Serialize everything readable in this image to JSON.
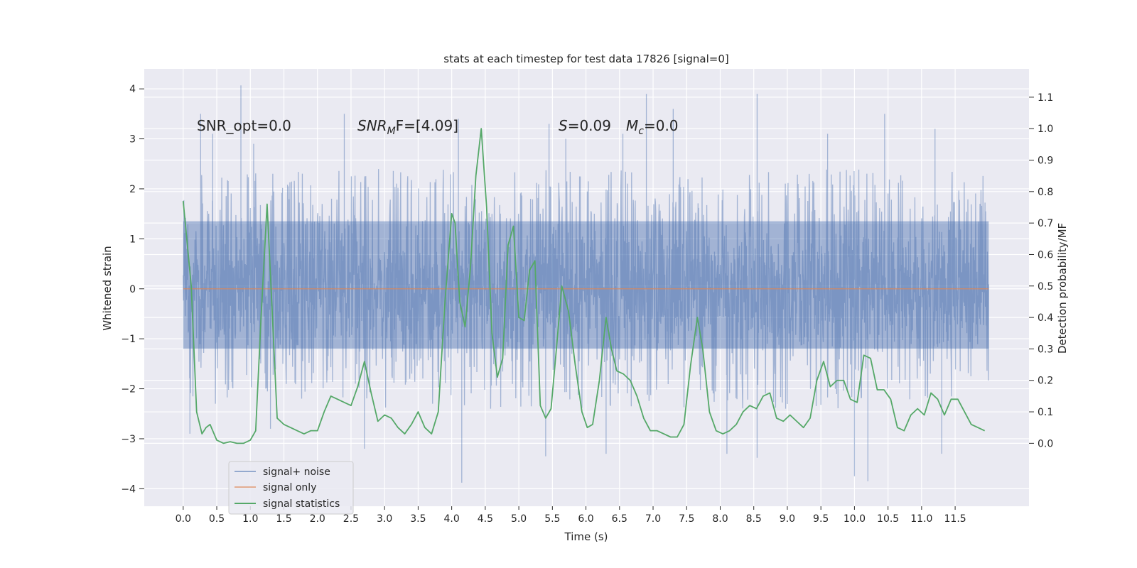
{
  "chart_data": {
    "type": "line",
    "title": "stats at each timestep for test data 17826 [signal=0]",
    "xlabel": "Time (s)",
    "ylabel": "Whitened strain",
    "ylabel_right": "Detection probability/MF",
    "xlim": [
      -0.58,
      12.6
    ],
    "ylim": [
      -4.35,
      4.4
    ],
    "ylim_right": [
      -0.2,
      1.19
    ],
    "x_ticks": [
      0.0,
      0.5,
      1.0,
      1.5,
      2.0,
      2.5,
      3.0,
      3.5,
      4.0,
      4.5,
      5.0,
      5.5,
      6.0,
      6.5,
      7.0,
      7.5,
      8.0,
      8.5,
      9.0,
      9.5,
      10.0,
      10.5,
      11.0,
      11.5
    ],
    "x_tick_labels": [
      "0.0",
      "0.5",
      "1.0",
      "1.5",
      "2.0",
      "2.5",
      "3.0",
      "3.5",
      "4.0",
      "4.5",
      "5.0",
      "5.5",
      "6.0",
      "6.5",
      "7.0",
      "7.5",
      "8.0",
      "8.5",
      "9.0",
      "9.5",
      "10.0",
      "10.5",
      "11.0",
      "11.5"
    ],
    "y_ticks": [
      -4,
      -3,
      -2,
      -1,
      0,
      1,
      2,
      3,
      4
    ],
    "y_tick_labels": [
      "−4",
      "−3",
      "−2",
      "−1",
      "0",
      "1",
      "2",
      "3",
      "4"
    ],
    "y_right_ticks": [
      0.0,
      0.1,
      0.2,
      0.3,
      0.4,
      0.5,
      0.6,
      0.7,
      0.8,
      0.9,
      1.0,
      1.1
    ],
    "y_right_tick_labels": [
      "0.0",
      "0.1",
      "0.2",
      "0.3",
      "0.4",
      "0.5",
      "0.6",
      "0.7",
      "0.8",
      "0.9",
      "1.0",
      "1.1"
    ],
    "grid": true,
    "legend_position": "lower-left",
    "annotations": {
      "snr_opt": "SNR_opt=0.0",
      "snr_mf_label": "SNR",
      "snr_mf_sub": "M",
      "snr_mf_rest": "F=[4.09]",
      "s_label": "S",
      "s_value": "=0.09",
      "mc_label": "M",
      "mc_sub": "c",
      "mc_value": "=0.0"
    },
    "series": [
      {
        "name": "signal+ noise",
        "axis": "left",
        "color": "#4c72b0",
        "style": "dense-noise",
        "x_range": [
          0.0,
          12.0
        ],
        "band": [
          -1.2,
          1.35
        ],
        "spikes": [
          {
            "x": 0.26,
            "y": 3.5
          },
          {
            "x": 0.44,
            "y": 3.1
          },
          {
            "x": 0.86,
            "y": 4.07
          },
          {
            "x": 1.05,
            "y": 2.9
          },
          {
            "x": 2.4,
            "y": 3.5
          },
          {
            "x": 4.1,
            "y": 3.4
          },
          {
            "x": 5.45,
            "y": 3.3
          },
          {
            "x": 5.7,
            "y": 3.0
          },
          {
            "x": 6.55,
            "y": 3.1
          },
          {
            "x": 6.9,
            "y": 3.9
          },
          {
            "x": 7.3,
            "y": 3.6
          },
          {
            "x": 8.55,
            "y": 3.9
          },
          {
            "x": 9.6,
            "y": 3.1
          },
          {
            "x": 10.45,
            "y": 3.5
          },
          {
            "x": 11.2,
            "y": 3.2
          },
          {
            "x": 0.1,
            "y": -2.9
          },
          {
            "x": 4.15,
            "y": -3.88
          },
          {
            "x": 5.4,
            "y": -3.35
          },
          {
            "x": 6.3,
            "y": -3.3
          },
          {
            "x": 8.1,
            "y": -3.3
          },
          {
            "x": 8.55,
            "y": -3.38
          },
          {
            "x": 10.0,
            "y": -3.75
          },
          {
            "x": 10.2,
            "y": -3.85
          },
          {
            "x": 11.3,
            "y": -3.3
          },
          {
            "x": 2.7,
            "y": -3.2
          },
          {
            "x": 1.3,
            "y": -2.8
          }
        ]
      },
      {
        "name": "signal only",
        "axis": "left",
        "color": "#dd8452",
        "x": [
          0.0,
          12.0
        ],
        "values": [
          0.0,
          0.0
        ]
      },
      {
        "name": "signal statistics",
        "axis": "right",
        "color": "#55a868",
        "x": [
          0.0,
          0.12,
          0.2,
          0.28,
          0.34,
          0.4,
          0.5,
          0.6,
          0.7,
          0.8,
          0.9,
          1.0,
          1.08,
          1.16,
          1.25,
          1.33,
          1.4,
          1.5,
          1.6,
          1.7,
          1.8,
          1.9,
          2.0,
          2.1,
          2.2,
          2.3,
          2.4,
          2.5,
          2.6,
          2.7,
          2.8,
          2.9,
          3.0,
          3.1,
          3.2,
          3.3,
          3.4,
          3.5,
          3.6,
          3.7,
          3.8,
          3.9,
          4.0,
          4.05,
          4.12,
          4.2,
          4.28,
          4.36,
          4.44,
          4.52,
          4.6,
          4.68,
          4.76,
          4.84,
          4.92,
          5.0,
          5.08,
          5.16,
          5.24,
          5.32,
          5.4,
          5.48,
          5.56,
          5.64,
          5.74,
          5.84,
          5.94,
          6.02,
          6.1,
          6.2,
          6.3,
          6.38,
          6.46,
          6.56,
          6.66,
          6.76,
          6.86,
          6.96,
          7.06,
          7.16,
          7.26,
          7.36,
          7.46,
          7.56,
          7.66,
          7.74,
          7.84,
          7.94,
          8.04,
          8.14,
          8.24,
          8.34,
          8.44,
          8.54,
          8.64,
          8.74,
          8.84,
          8.94,
          9.04,
          9.14,
          9.24,
          9.34,
          9.44,
          9.54,
          9.64,
          9.74,
          9.84,
          9.94,
          10.04,
          10.14,
          10.24,
          10.34,
          10.44,
          10.54,
          10.64,
          10.74,
          10.84,
          10.94,
          11.04,
          11.14,
          11.24,
          11.34,
          11.44,
          11.54,
          11.64,
          11.74,
          11.84,
          11.94
        ],
        "values": [
          0.77,
          0.5,
          0.1,
          0.03,
          0.05,
          0.06,
          0.01,
          0.0,
          0.005,
          0.0,
          0.0,
          0.01,
          0.04,
          0.4,
          0.76,
          0.4,
          0.08,
          0.06,
          0.05,
          0.04,
          0.03,
          0.04,
          0.04,
          0.1,
          0.15,
          0.14,
          0.13,
          0.12,
          0.18,
          0.26,
          0.16,
          0.07,
          0.09,
          0.08,
          0.05,
          0.03,
          0.06,
          0.1,
          0.05,
          0.03,
          0.1,
          0.45,
          0.73,
          0.7,
          0.45,
          0.37,
          0.56,
          0.85,
          1.0,
          0.75,
          0.35,
          0.21,
          0.27,
          0.63,
          0.69,
          0.4,
          0.39,
          0.55,
          0.58,
          0.12,
          0.08,
          0.11,
          0.3,
          0.5,
          0.42,
          0.25,
          0.1,
          0.05,
          0.06,
          0.2,
          0.4,
          0.3,
          0.23,
          0.22,
          0.2,
          0.15,
          0.08,
          0.04,
          0.04,
          0.03,
          0.02,
          0.02,
          0.06,
          0.25,
          0.4,
          0.3,
          0.1,
          0.04,
          0.03,
          0.04,
          0.06,
          0.1,
          0.12,
          0.11,
          0.15,
          0.16,
          0.08,
          0.07,
          0.09,
          0.07,
          0.05,
          0.08,
          0.2,
          0.26,
          0.18,
          0.2,
          0.2,
          0.14,
          0.13,
          0.28,
          0.27,
          0.17,
          0.17,
          0.14,
          0.05,
          0.04,
          0.09,
          0.11,
          0.09,
          0.16,
          0.14,
          0.09,
          0.14,
          0.14,
          0.1,
          0.06,
          0.05,
          0.04
        ]
      }
    ]
  }
}
